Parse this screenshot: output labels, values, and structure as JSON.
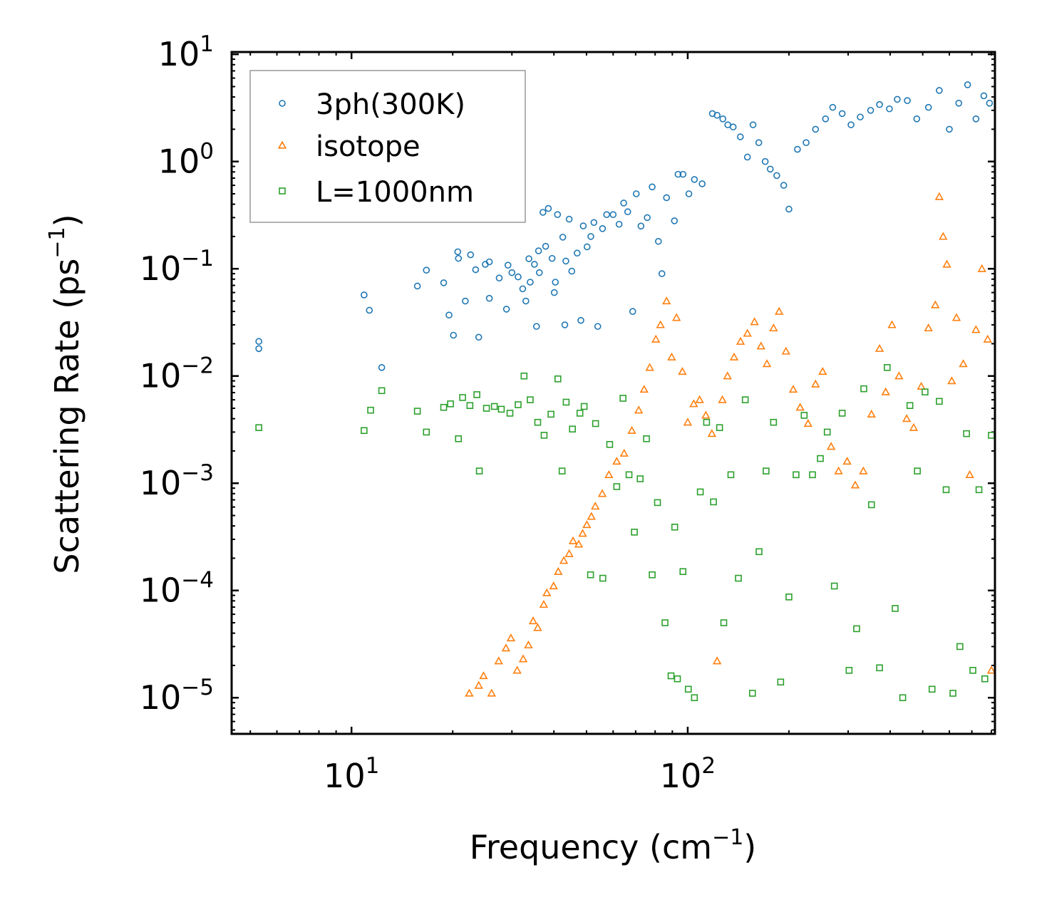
{
  "chart_data": {
    "type": "scatter",
    "xscale": "log",
    "yscale": "log",
    "xlabel": "Frequency (cm",
    "xlabel_sup": "−1",
    "xlabel_end": ")",
    "ylabel": "Scattering Rate (ps",
    "ylabel_sup": "−1",
    "ylabel_end": ")",
    "xlim": [
      4.4,
      820
    ],
    "ylim": [
      4.6e-06,
      10.5
    ],
    "x_ticks": [
      {
        "value": 10,
        "base": "10",
        "exp": "1"
      },
      {
        "value": 100,
        "base": "10",
        "exp": "2"
      }
    ],
    "y_ticks": [
      {
        "value": 10,
        "base": "10",
        "exp": "1"
      },
      {
        "value": 1,
        "base": "10",
        "exp": "0"
      },
      {
        "value": 0.1,
        "base": "10",
        "exp": "−1"
      },
      {
        "value": 0.01,
        "base": "10",
        "exp": "−2"
      },
      {
        "value": 0.001,
        "base": "10",
        "exp": "−3"
      },
      {
        "value": 0.0001,
        "base": "10",
        "exp": "−4"
      },
      {
        "value": 1e-05,
        "base": "10",
        "exp": "−5"
      }
    ],
    "legend_position": "top-left",
    "series": [
      {
        "name": "3ph(300K)",
        "marker": "circle",
        "color": "#1f77b4",
        "points": [
          [
            5.3,
            0.021
          ],
          [
            5.3,
            0.018
          ],
          [
            10.9,
            0.057
          ],
          [
            11.3,
            0.041
          ],
          [
            12.3,
            0.012
          ],
          [
            15.7,
            0.069
          ],
          [
            16.7,
            0.097
          ],
          [
            18.8,
            0.074
          ],
          [
            19.5,
            0.037
          ],
          [
            20.1,
            0.024
          ],
          [
            20.7,
            0.144
          ],
          [
            20.8,
            0.125
          ],
          [
            21.8,
            0.05
          ],
          [
            22.6,
            0.135
          ],
          [
            23.4,
            0.098
          ],
          [
            23.9,
            0.023
          ],
          [
            25,
            0.11
          ],
          [
            25.7,
            0.116
          ],
          [
            25.7,
            0.053
          ],
          [
            27.5,
            0.082
          ],
          [
            28.9,
            0.042
          ],
          [
            29.2,
            0.108
          ],
          [
            30,
            0.092
          ],
          [
            31.3,
            0.084
          ],
          [
            32.3,
            0.065
          ],
          [
            33,
            0.05
          ],
          [
            33.7,
            0.124
          ],
          [
            34,
            0.075
          ],
          [
            35,
            0.11
          ],
          [
            35.5,
            0.029
          ],
          [
            36,
            0.147
          ],
          [
            36.2,
            0.092
          ],
          [
            37.1,
            0.336
          ],
          [
            37.8,
            0.162
          ],
          [
            38.5,
            0.365
          ],
          [
            39.5,
            0.125
          ],
          [
            40.1,
            0.06
          ],
          [
            40.4,
            0.075
          ],
          [
            41,
            0.32
          ],
          [
            42.5,
            0.197
          ],
          [
            43.1,
            0.03
          ],
          [
            43.4,
            0.118
          ],
          [
            44.4,
            0.29
          ],
          [
            45.2,
            0.095
          ],
          [
            46.9,
            0.14
          ],
          [
            48.1,
            0.033
          ],
          [
            48.9,
            0.251
          ],
          [
            50.2,
            0.16
          ],
          [
            51.5,
            0.2
          ],
          [
            52.6,
            0.27
          ],
          [
            54,
            0.029
          ],
          [
            55.8,
            0.237
          ],
          [
            57.4,
            0.32
          ],
          [
            60,
            0.32
          ],
          [
            62.5,
            0.26
          ],
          [
            64.5,
            0.41
          ],
          [
            66.3,
            0.34
          ],
          [
            68.6,
            0.04
          ],
          [
            70.3,
            0.5
          ],
          [
            72.6,
            0.25
          ],
          [
            75.8,
            0.3
          ],
          [
            78.4,
            0.58
          ],
          [
            81.8,
            0.18
          ],
          [
            83.8,
            0.09
          ],
          [
            86.5,
            0.46
          ],
          [
            91.3,
            0.28
          ],
          [
            93.6,
            0.76
          ],
          [
            96.8,
            0.76
          ],
          [
            100.8,
            0.5
          ],
          [
            104.7,
            0.68
          ],
          [
            110.4,
            0.62
          ],
          [
            118.4,
            2.8
          ],
          [
            122.3,
            2.7
          ],
          [
            127.2,
            2.5
          ],
          [
            131.6,
            2.2
          ],
          [
            136.5,
            2.1
          ],
          [
            143.4,
            1.7
          ],
          [
            150.5,
            1.1
          ],
          [
            156.4,
            2.2
          ],
          [
            162.7,
            1.5
          ],
          [
            170,
            1.0
          ],
          [
            176,
            0.85
          ],
          [
            184,
            0.74
          ],
          [
            193,
            0.6
          ],
          [
            200,
            0.36
          ],
          [
            212,
            1.3
          ],
          [
            225,
            1.5
          ],
          [
            240,
            2.0
          ],
          [
            257,
            2.5
          ],
          [
            270,
            3.2
          ],
          [
            288,
            2.8
          ],
          [
            306,
            2.2
          ],
          [
            326,
            2.6
          ],
          [
            350,
            3.0
          ],
          [
            372,
            3.4
          ],
          [
            398,
            3.1
          ],
          [
            420,
            3.8
          ],
          [
            450,
            3.7
          ],
          [
            480,
            2.5
          ],
          [
            520,
            3.2
          ],
          [
            560,
            4.6
          ],
          [
            600,
            2.0
          ],
          [
            640,
            3.5
          ],
          [
            680,
            5.2
          ],
          [
            720,
            2.5
          ],
          [
            760,
            4.1
          ],
          [
            790,
            3.5
          ]
        ]
      },
      {
        "name": "isotope",
        "marker": "triangle",
        "color": "#ff7f0e",
        "points": [
          [
            22.4,
            1.1e-05
          ],
          [
            23.9,
            1.3e-05
          ],
          [
            24.7,
            1.6e-05
          ],
          [
            26.1,
            1.1e-05
          ],
          [
            27.4,
            2.2e-05
          ],
          [
            28.8,
            2.9e-05
          ],
          [
            29.8,
            3.6e-05
          ],
          [
            31.1,
            1.8e-05
          ],
          [
            32.4,
            2.3e-05
          ],
          [
            33.6,
            3.1e-05
          ],
          [
            34.7,
            5.2e-05
          ],
          [
            35.8,
            4.5e-05
          ],
          [
            37.3,
            7.4e-05
          ],
          [
            38.1,
            9.5e-05
          ],
          [
            39.9,
            0.00011
          ],
          [
            41.2,
            0.00015
          ],
          [
            42.8,
            0.00019
          ],
          [
            44.4,
            0.00022
          ],
          [
            45.6,
            0.00029
          ],
          [
            47.4,
            0.00027
          ],
          [
            48.7,
            0.00034
          ],
          [
            50.1,
            0.00041
          ],
          [
            51.7,
            0.00049
          ],
          [
            53.1,
            0.00061
          ],
          [
            55.7,
            0.0008
          ],
          [
            58.3,
            0.0012
          ],
          [
            61.5,
            0.0016
          ],
          [
            64.7,
            0.0019
          ],
          [
            68.2,
            0.0031
          ],
          [
            71.5,
            0.0048
          ],
          [
            74.2,
            0.0075
          ],
          [
            77.1,
            0.012
          ],
          [
            80.4,
            0.022
          ],
          [
            83,
            0.03
          ],
          [
            86.5,
            0.05
          ],
          [
            89.6,
            0.015
          ],
          [
            92.6,
            0.035
          ],
          [
            96.4,
            0.011
          ],
          [
            100,
            0.0037
          ],
          [
            104.2,
            0.0055
          ],
          [
            108.5,
            0.006
          ],
          [
            113.2,
            0.0043
          ],
          [
            118,
            0.0029
          ],
          [
            122.3,
            2.2e-05
          ],
          [
            126.8,
            0.006
          ],
          [
            131.3,
            0.01
          ],
          [
            137.4,
            0.015
          ],
          [
            143.6,
            0.021
          ],
          [
            150.5,
            0.025
          ],
          [
            158,
            0.032
          ],
          [
            165.2,
            0.019
          ],
          [
            172,
            0.013
          ],
          [
            180,
            0.028
          ],
          [
            187,
            0.04
          ],
          [
            196,
            0.017
          ],
          [
            206,
            0.0075
          ],
          [
            216,
            0.0051
          ],
          [
            228,
            0.0036
          ],
          [
            240,
            0.0084
          ],
          [
            252,
            0.011
          ],
          [
            267,
            0.0022
          ],
          [
            281,
            0.0013
          ],
          [
            298,
            0.0016
          ],
          [
            315,
            0.00096
          ],
          [
            333,
            0.0013
          ],
          [
            352,
            0.0044
          ],
          [
            372,
            0.018
          ],
          [
            388,
            0.0071
          ],
          [
            405,
            0.03
          ],
          [
            425,
            0.01
          ],
          [
            448,
            0.004
          ],
          [
            470,
            0.0033
          ],
          [
            495,
            0.008
          ],
          [
            520,
            0.028
          ],
          [
            545,
            0.046
          ],
          [
            560,
            0.47
          ],
          [
            575,
            0.2
          ],
          [
            590,
            0.11
          ],
          [
            610,
            0.009
          ],
          [
            630,
            0.035
          ],
          [
            660,
            0.013
          ],
          [
            690,
            0.0012
          ],
          [
            720,
            0.027
          ],
          [
            750,
            0.1
          ],
          [
            780,
            0.022
          ],
          [
            800,
            1.8e-05
          ]
        ]
      },
      {
        "name": "L=1000nm",
        "marker": "square",
        "color": "#2ca02c",
        "points": [
          [
            5.3,
            0.0033
          ],
          [
            10.9,
            0.0031
          ],
          [
            11.4,
            0.0048
          ],
          [
            12.3,
            0.0073
          ],
          [
            15.7,
            0.0047
          ],
          [
            16.7,
            0.003
          ],
          [
            18.8,
            0.0051
          ],
          [
            19.7,
            0.0055
          ],
          [
            20.8,
            0.0026
          ],
          [
            21.4,
            0.0063
          ],
          [
            22.5,
            0.0053
          ],
          [
            23.6,
            0.0067
          ],
          [
            24,
            0.0013
          ],
          [
            25.2,
            0.005
          ],
          [
            26.6,
            0.0052
          ],
          [
            27.9,
            0.0049
          ],
          [
            29.6,
            0.0045
          ],
          [
            31.3,
            0.0054
          ],
          [
            32.6,
            0.01
          ],
          [
            34,
            0.006
          ],
          [
            35.8,
            0.0037
          ],
          [
            37.4,
            0.0028
          ],
          [
            39.2,
            0.0044
          ],
          [
            41.1,
            0.0094
          ],
          [
            42.3,
            0.0013
          ],
          [
            43.5,
            0.0057
          ],
          [
            45.4,
            0.0032
          ],
          [
            47.8,
            0.0045
          ],
          [
            49.2,
            0.0052
          ],
          [
            51.4,
            0.00014
          ],
          [
            53.2,
            0.0036
          ],
          [
            55.9,
            0.00013
          ],
          [
            58.6,
            0.0023
          ],
          [
            61.5,
            0.00093
          ],
          [
            64.2,
            0.0062
          ],
          [
            66.9,
            0.0012
          ],
          [
            69.4,
            0.00035
          ],
          [
            72.2,
            0.0011
          ],
          [
            75.4,
            0.0026
          ],
          [
            78.4,
            0.00014
          ],
          [
            81.3,
            0.00066
          ],
          [
            85.6,
            5e-05
          ],
          [
            89.2,
            1.6e-05
          ],
          [
            91.5,
            0.00039
          ],
          [
            93.2,
            1.5e-05
          ],
          [
            96.8,
            0.00015
          ],
          [
            100.4,
            1.2e-05
          ],
          [
            104.7,
            1e-05
          ],
          [
            109,
            0.00083
          ],
          [
            113.8,
            0.0037
          ],
          [
            119.3,
            0.00067
          ],
          [
            124.4,
            0.0033
          ],
          [
            128,
            5e-05
          ],
          [
            134.4,
            0.0012
          ],
          [
            141.5,
            0.00013
          ],
          [
            148.3,
            0.006
          ],
          [
            155.8,
            1.1e-05
          ],
          [
            163,
            0.00023
          ],
          [
            171,
            0.0013
          ],
          [
            180,
            0.0037
          ],
          [
            189,
            1.4e-05
          ],
          [
            200,
            8.7e-05
          ],
          [
            210,
            0.0012
          ],
          [
            222,
            0.0043
          ],
          [
            235,
            0.0012
          ],
          [
            248,
            0.0017
          ],
          [
            260,
            0.003
          ],
          [
            273,
            0.00011
          ],
          [
            288,
            0.0045
          ],
          [
            302,
            1.8e-05
          ],
          [
            318,
            4.4e-05
          ],
          [
            334,
            0.0076
          ],
          [
            352,
            0.00063
          ],
          [
            372,
            1.9e-05
          ],
          [
            392,
            0.012
          ],
          [
            414,
            6.8e-05
          ],
          [
            436,
            1e-05
          ],
          [
            458,
            0.0053
          ],
          [
            482,
            0.0013
          ],
          [
            508,
            0.0071
          ],
          [
            533,
            1.2e-05
          ],
          [
            560,
            0.0058
          ],
          [
            587,
            0.00087
          ],
          [
            615,
            1.1e-05
          ],
          [
            645,
            3e-05
          ],
          [
            675,
            0.0029
          ],
          [
            705,
            1.8e-05
          ],
          [
            735,
            0.00087
          ],
          [
            765,
            1.5e-05
          ],
          [
            800,
            0.0028
          ]
        ]
      }
    ]
  }
}
